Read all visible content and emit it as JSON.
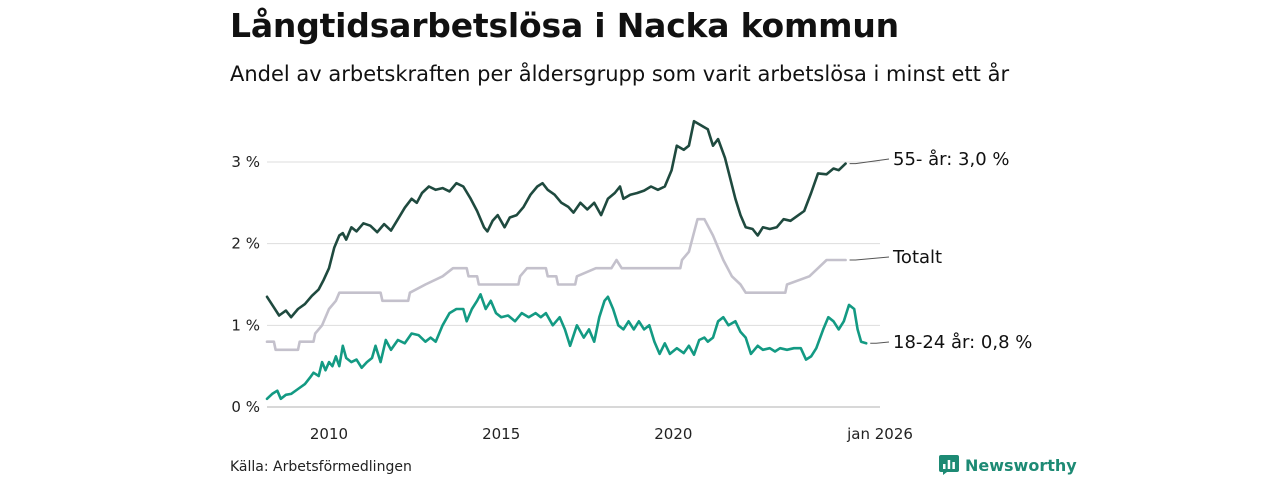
{
  "title": "Långtidsarbetslösa i Nacka kommun",
  "subtitle": "Andel av arbetskraften per åldersgrupp som varit arbetslösa i minst ett år",
  "source": "Källa: Arbetsförmedlingen",
  "brand": "Newsworthy",
  "chart_data": {
    "type": "line",
    "title": "Långtidsarbetslösa i Nacka kommun",
    "ylabel": "",
    "xlabel": "",
    "ylim": [
      0,
      3.6
    ],
    "xlim": [
      2008.2,
      2026.0
    ],
    "y_ticks": [
      0,
      1,
      2,
      3
    ],
    "y_tick_labels": [
      "0 %",
      "1 %",
      "2 %",
      "3 %"
    ],
    "x_ticks": [
      2010,
      2015,
      2020,
      2026
    ],
    "x_tick_labels": [
      "2010",
      "2015",
      "2020",
      "jan 2026"
    ],
    "grid": true,
    "series": [
      {
        "name": "55- år",
        "end_label": "55- år: 3,0 %",
        "color": "#1f4a3f",
        "points": [
          [
            2008.2,
            1.35
          ],
          [
            2008.4,
            1.22
          ],
          [
            2008.55,
            1.12
          ],
          [
            2008.75,
            1.18
          ],
          [
            2008.9,
            1.1
          ],
          [
            2009.1,
            1.2
          ],
          [
            2009.3,
            1.26
          ],
          [
            2009.5,
            1.36
          ],
          [
            2009.7,
            1.44
          ],
          [
            2009.85,
            1.56
          ],
          [
            2010.0,
            1.7
          ],
          [
            2010.15,
            1.95
          ],
          [
            2010.3,
            2.1
          ],
          [
            2010.4,
            2.13
          ],
          [
            2010.5,
            2.05
          ],
          [
            2010.65,
            2.2
          ],
          [
            2010.8,
            2.15
          ],
          [
            2011.0,
            2.25
          ],
          [
            2011.2,
            2.22
          ],
          [
            2011.4,
            2.14
          ],
          [
            2011.6,
            2.24
          ],
          [
            2011.8,
            2.16
          ],
          [
            2012.0,
            2.3
          ],
          [
            2012.2,
            2.44
          ],
          [
            2012.4,
            2.55
          ],
          [
            2012.55,
            2.5
          ],
          [
            2012.7,
            2.62
          ],
          [
            2012.9,
            2.7
          ],
          [
            2013.1,
            2.66
          ],
          [
            2013.3,
            2.68
          ],
          [
            2013.5,
            2.64
          ],
          [
            2013.7,
            2.74
          ],
          [
            2013.9,
            2.7
          ],
          [
            2014.1,
            2.56
          ],
          [
            2014.3,
            2.4
          ],
          [
            2014.5,
            2.2
          ],
          [
            2014.6,
            2.15
          ],
          [
            2014.75,
            2.28
          ],
          [
            2014.9,
            2.35
          ],
          [
            2015.1,
            2.2
          ],
          [
            2015.25,
            2.32
          ],
          [
            2015.45,
            2.35
          ],
          [
            2015.65,
            2.45
          ],
          [
            2015.85,
            2.6
          ],
          [
            2016.05,
            2.7
          ],
          [
            2016.2,
            2.74
          ],
          [
            2016.35,
            2.66
          ],
          [
            2016.55,
            2.6
          ],
          [
            2016.75,
            2.5
          ],
          [
            2016.95,
            2.45
          ],
          [
            2017.1,
            2.38
          ],
          [
            2017.3,
            2.5
          ],
          [
            2017.5,
            2.42
          ],
          [
            2017.7,
            2.5
          ],
          [
            2017.9,
            2.35
          ],
          [
            2018.1,
            2.55
          ],
          [
            2018.3,
            2.62
          ],
          [
            2018.45,
            2.7
          ],
          [
            2018.55,
            2.55
          ],
          [
            2018.75,
            2.6
          ],
          [
            2018.95,
            2.62
          ],
          [
            2019.15,
            2.65
          ],
          [
            2019.35,
            2.7
          ],
          [
            2019.55,
            2.66
          ],
          [
            2019.75,
            2.7
          ],
          [
            2019.95,
            2.9
          ],
          [
            2020.1,
            3.2
          ],
          [
            2020.3,
            3.15
          ],
          [
            2020.45,
            3.2
          ],
          [
            2020.6,
            3.5
          ],
          [
            2020.8,
            3.45
          ],
          [
            2021.0,
            3.4
          ],
          [
            2021.15,
            3.2
          ],
          [
            2021.3,
            3.28
          ],
          [
            2021.5,
            3.05
          ],
          [
            2021.65,
            2.8
          ],
          [
            2021.8,
            2.55
          ],
          [
            2021.95,
            2.35
          ],
          [
            2022.1,
            2.2
          ],
          [
            2022.3,
            2.18
          ],
          [
            2022.45,
            2.1
          ],
          [
            2022.6,
            2.2
          ],
          [
            2022.8,
            2.18
          ],
          [
            2023.0,
            2.2
          ],
          [
            2023.2,
            2.3
          ],
          [
            2023.4,
            2.28
          ],
          [
            2023.6,
            2.34
          ],
          [
            2023.8,
            2.4
          ],
          [
            2024.0,
            2.62
          ],
          [
            2024.2,
            2.86
          ],
          [
            2024.45,
            2.85
          ],
          [
            2024.65,
            2.92
          ],
          [
            2024.8,
            2.9
          ],
          [
            2025.0,
            2.98
          ]
        ]
      },
      {
        "name": "Totalt",
        "end_label": "Totalt",
        "color": "#c4c1cc",
        "points": [
          [
            2008.2,
            0.8
          ],
          [
            2008.4,
            0.8
          ],
          [
            2008.45,
            0.7
          ],
          [
            2009.1,
            0.7
          ],
          [
            2009.15,
            0.8
          ],
          [
            2009.55,
            0.8
          ],
          [
            2009.6,
            0.9
          ],
          [
            2009.8,
            1.0
          ],
          [
            2010.0,
            1.2
          ],
          [
            2010.2,
            1.3
          ],
          [
            2010.3,
            1.4
          ],
          [
            2011.5,
            1.4
          ],
          [
            2011.55,
            1.3
          ],
          [
            2012.3,
            1.3
          ],
          [
            2012.35,
            1.4
          ],
          [
            2012.8,
            1.5
          ],
          [
            2013.3,
            1.6
          ],
          [
            2013.6,
            1.7
          ],
          [
            2014.0,
            1.7
          ],
          [
            2014.05,
            1.6
          ],
          [
            2014.3,
            1.6
          ],
          [
            2014.35,
            1.5
          ],
          [
            2015.5,
            1.5
          ],
          [
            2015.55,
            1.6
          ],
          [
            2015.75,
            1.7
          ],
          [
            2016.3,
            1.7
          ],
          [
            2016.35,
            1.6
          ],
          [
            2016.6,
            1.6
          ],
          [
            2016.65,
            1.5
          ],
          [
            2017.15,
            1.5
          ],
          [
            2017.2,
            1.6
          ],
          [
            2017.75,
            1.7
          ],
          [
            2018.2,
            1.7
          ],
          [
            2018.35,
            1.8
          ],
          [
            2018.5,
            1.7
          ],
          [
            2020.2,
            1.7
          ],
          [
            2020.25,
            1.8
          ],
          [
            2020.45,
            1.9
          ],
          [
            2020.7,
            2.3
          ],
          [
            2020.9,
            2.3
          ],
          [
            2021.15,
            2.1
          ],
          [
            2021.45,
            1.8
          ],
          [
            2021.7,
            1.6
          ],
          [
            2021.95,
            1.5
          ],
          [
            2022.1,
            1.4
          ],
          [
            2023.25,
            1.4
          ],
          [
            2023.3,
            1.5
          ],
          [
            2023.95,
            1.6
          ],
          [
            2024.2,
            1.7
          ],
          [
            2024.45,
            1.8
          ],
          [
            2025.0,
            1.8
          ]
        ]
      },
      {
        "name": "18-24 år",
        "end_label": "18-24 år: 0,8 %",
        "color": "#139a83",
        "points": [
          [
            2008.2,
            0.1
          ],
          [
            2008.35,
            0.16
          ],
          [
            2008.5,
            0.2
          ],
          [
            2008.6,
            0.1
          ],
          [
            2008.75,
            0.15
          ],
          [
            2008.9,
            0.16
          ],
          [
            2009.1,
            0.22
          ],
          [
            2009.3,
            0.28
          ],
          [
            2009.45,
            0.36
          ],
          [
            2009.55,
            0.42
          ],
          [
            2009.7,
            0.38
          ],
          [
            2009.8,
            0.55
          ],
          [
            2009.9,
            0.45
          ],
          [
            2010.0,
            0.55
          ],
          [
            2010.1,
            0.5
          ],
          [
            2010.2,
            0.62
          ],
          [
            2010.3,
            0.5
          ],
          [
            2010.4,
            0.75
          ],
          [
            2010.5,
            0.6
          ],
          [
            2010.65,
            0.55
          ],
          [
            2010.8,
            0.58
          ],
          [
            2010.95,
            0.48
          ],
          [
            2011.1,
            0.55
          ],
          [
            2011.25,
            0.6
          ],
          [
            2011.35,
            0.75
          ],
          [
            2011.5,
            0.55
          ],
          [
            2011.65,
            0.82
          ],
          [
            2011.8,
            0.7
          ],
          [
            2012.0,
            0.82
          ],
          [
            2012.2,
            0.78
          ],
          [
            2012.4,
            0.9
          ],
          [
            2012.6,
            0.88
          ],
          [
            2012.8,
            0.8
          ],
          [
            2012.95,
            0.85
          ],
          [
            2013.1,
            0.8
          ],
          [
            2013.3,
            1.0
          ],
          [
            2013.5,
            1.15
          ],
          [
            2013.7,
            1.2
          ],
          [
            2013.9,
            1.2
          ],
          [
            2014.0,
            1.05
          ],
          [
            2014.15,
            1.2
          ],
          [
            2014.3,
            1.3
          ],
          [
            2014.4,
            1.38
          ],
          [
            2014.55,
            1.2
          ],
          [
            2014.7,
            1.3
          ],
          [
            2014.85,
            1.15
          ],
          [
            2015.0,
            1.1
          ],
          [
            2015.2,
            1.12
          ],
          [
            2015.4,
            1.05
          ],
          [
            2015.6,
            1.15
          ],
          [
            2015.8,
            1.1
          ],
          [
            2016.0,
            1.15
          ],
          [
            2016.15,
            1.1
          ],
          [
            2016.3,
            1.15
          ],
          [
            2016.5,
            1.0
          ],
          [
            2016.7,
            1.1
          ],
          [
            2016.85,
            0.95
          ],
          [
            2017.0,
            0.75
          ],
          [
            2017.2,
            1.0
          ],
          [
            2017.4,
            0.85
          ],
          [
            2017.55,
            0.95
          ],
          [
            2017.7,
            0.8
          ],
          [
            2017.85,
            1.1
          ],
          [
            2018.0,
            1.3
          ],
          [
            2018.1,
            1.35
          ],
          [
            2018.25,
            1.2
          ],
          [
            2018.4,
            1.0
          ],
          [
            2018.55,
            0.95
          ],
          [
            2018.7,
            1.05
          ],
          [
            2018.85,
            0.95
          ],
          [
            2019.0,
            1.05
          ],
          [
            2019.15,
            0.95
          ],
          [
            2019.3,
            1.0
          ],
          [
            2019.45,
            0.8
          ],
          [
            2019.6,
            0.65
          ],
          [
            2019.75,
            0.78
          ],
          [
            2019.9,
            0.65
          ],
          [
            2020.1,
            0.72
          ],
          [
            2020.3,
            0.66
          ],
          [
            2020.45,
            0.75
          ],
          [
            2020.6,
            0.64
          ],
          [
            2020.75,
            0.82
          ],
          [
            2020.9,
            0.85
          ],
          [
            2021.0,
            0.8
          ],
          [
            2021.15,
            0.85
          ],
          [
            2021.3,
            1.05
          ],
          [
            2021.45,
            1.1
          ],
          [
            2021.6,
            1.0
          ],
          [
            2021.8,
            1.05
          ],
          [
            2021.95,
            0.92
          ],
          [
            2022.1,
            0.85
          ],
          [
            2022.25,
            0.65
          ],
          [
            2022.45,
            0.75
          ],
          [
            2022.6,
            0.7
          ],
          [
            2022.8,
            0.72
          ],
          [
            2022.95,
            0.68
          ],
          [
            2023.1,
            0.72
          ],
          [
            2023.3,
            0.7
          ],
          [
            2023.5,
            0.72
          ],
          [
            2023.7,
            0.72
          ],
          [
            2023.85,
            0.58
          ],
          [
            2024.0,
            0.62
          ],
          [
            2024.15,
            0.72
          ],
          [
            2024.35,
            0.95
          ],
          [
            2024.5,
            1.1
          ],
          [
            2024.65,
            1.05
          ],
          [
            2024.8,
            0.95
          ],
          [
            2024.95,
            1.05
          ],
          [
            2025.1,
            1.25
          ],
          [
            2025.25,
            1.2
          ],
          [
            2025.35,
            0.95
          ],
          [
            2025.45,
            0.8
          ],
          [
            2025.6,
            0.78
          ]
        ]
      }
    ]
  }
}
